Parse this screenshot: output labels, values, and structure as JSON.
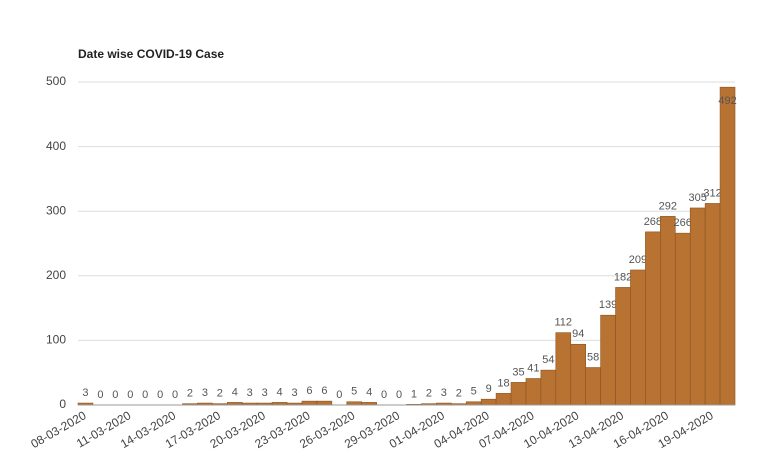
{
  "chart_data": {
    "type": "bar",
    "title": "Date wise COVID-19 Case",
    "categories": [
      "08-03-2020",
      null,
      null,
      "11-03-2020",
      null,
      null,
      "14-03-2020",
      null,
      null,
      "17-03-2020",
      null,
      null,
      "20-03-2020",
      null,
      null,
      "23-03-2020",
      null,
      null,
      "26-03-2020",
      null,
      null,
      "29-03-2020",
      null,
      null,
      "01-04-2020",
      null,
      null,
      "04-04-2020",
      null,
      null,
      "07-04-2020",
      null,
      null,
      "10-04-2020",
      null,
      null,
      "13-04-2020",
      null,
      null,
      "16-04-2020",
      null,
      null,
      "19-04-2020",
      null
    ],
    "values": [
      3,
      0,
      0,
      0,
      0,
      0,
      0,
      2,
      3,
      2,
      4,
      3,
      3,
      4,
      3,
      6,
      6,
      0,
      5,
      4,
      0,
      0,
      1,
      2,
      3,
      2,
      5,
      9,
      18,
      35,
      41,
      54,
      112,
      94,
      58,
      139,
      182,
      209,
      268,
      292,
      266,
      305,
      312,
      492
    ],
    "color": "#b87333",
    "ylim": [
      0,
      500
    ],
    "yticks": [
      0,
      100,
      200,
      300,
      400,
      500
    ],
    "grid": true
  }
}
